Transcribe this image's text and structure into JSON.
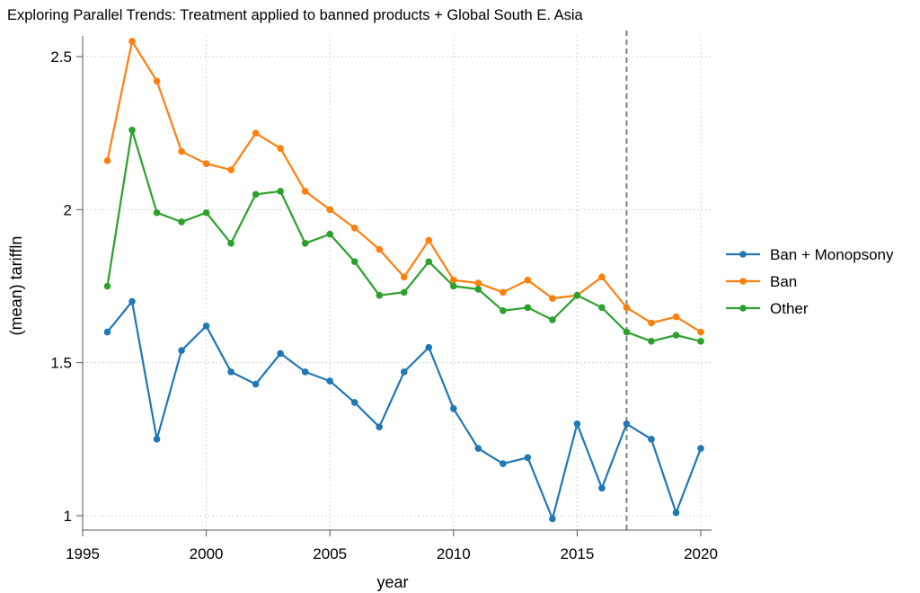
{
  "chart_data": {
    "type": "line",
    "title": "Exploring Parallel Trends: Treatment applied to banned products + Global South E. Asia",
    "xlabel": "year",
    "ylabel": "(mean) tariffln",
    "xlim": [
      1995,
      2020
    ],
    "ylim": [
      1,
      2.5
    ],
    "xticks": [
      1995,
      2000,
      2005,
      2010,
      2015,
      2020
    ],
    "yticks": [
      1,
      1.5,
      2,
      2.5
    ],
    "ytick_labels": [
      "1",
      "1.5",
      "2",
      "2.5"
    ],
    "grid": true,
    "legend_position": "right",
    "vline": {
      "x": 2017,
      "style": "dashed",
      "color": "#808080"
    },
    "x": [
      1996,
      1997,
      1998,
      1999,
      2000,
      2001,
      2002,
      2003,
      2004,
      2005,
      2006,
      2007,
      2008,
      2009,
      2010,
      2011,
      2012,
      2013,
      2014,
      2015,
      2016,
      2017,
      2018,
      2019,
      2020
    ],
    "series": [
      {
        "name": "Ban + Monopsony",
        "color": "#1f77b4",
        "values": [
          1.6,
          1.7,
          1.25,
          1.54,
          1.62,
          1.47,
          1.43,
          1.53,
          1.47,
          1.44,
          1.37,
          1.29,
          1.47,
          1.55,
          1.35,
          1.22,
          1.17,
          1.19,
          0.99,
          1.3,
          1.09,
          1.3,
          1.25,
          1.01,
          1.22
        ]
      },
      {
        "name": "Ban",
        "color": "#ff7f0e",
        "values": [
          2.16,
          2.55,
          2.42,
          2.19,
          2.15,
          2.13,
          2.25,
          2.2,
          2.06,
          2.0,
          1.94,
          1.87,
          1.78,
          1.9,
          1.77,
          1.76,
          1.73,
          1.77,
          1.71,
          1.72,
          1.78,
          1.68,
          1.63,
          1.65,
          1.6
        ]
      },
      {
        "name": "Other",
        "color": "#2ca02c",
        "values": [
          1.75,
          2.26,
          1.99,
          1.96,
          1.99,
          1.89,
          2.05,
          2.06,
          1.89,
          1.92,
          1.83,
          1.72,
          1.73,
          1.83,
          1.75,
          1.74,
          1.67,
          1.68,
          1.64,
          1.72,
          1.68,
          1.6,
          1.57,
          1.59,
          1.57
        ]
      }
    ]
  }
}
